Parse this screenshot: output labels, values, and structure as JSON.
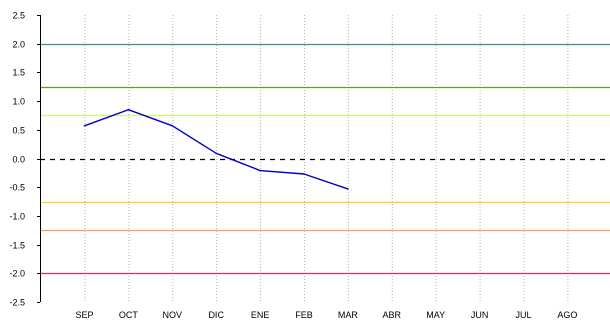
{
  "chart_data": {
    "type": "line",
    "title": "",
    "xlabel": "",
    "ylabel": "",
    "categories": [
      "SEP",
      "OCT",
      "NOV",
      "DIC",
      "ENE",
      "FEB",
      "MAR",
      "ABR",
      "MAY",
      "JUN",
      "JUL",
      "AGO"
    ],
    "ylim": [
      -2.5,
      2.5
    ],
    "yticks": [
      "2.5",
      "2.0",
      "1.5",
      "1.0",
      "0.5",
      "0.0",
      "-0.5",
      "-1.0",
      "-1.5",
      "-2.0",
      "-2.5"
    ],
    "grid": "vertical-dotted",
    "series": [
      {
        "color": "#0000cc",
        "values": [
          0.57,
          0.85,
          0.57,
          0.09,
          -0.21,
          -0.27,
          -0.53,
          null,
          null,
          null,
          null,
          null
        ]
      }
    ],
    "reference_lines": [
      {
        "value": 2.0,
        "color": "#339966",
        "style": "solid"
      },
      {
        "value": 1.25,
        "color": "#669933",
        "style": "solid"
      },
      {
        "value": 0.75,
        "color": "#ccff66",
        "style": "solid"
      },
      {
        "value": 0.0,
        "color": "#000000",
        "style": "dashed"
      },
      {
        "value": -0.75,
        "color": "#ffcc33",
        "style": "solid"
      },
      {
        "value": -1.25,
        "color": "#ff9966",
        "style": "solid"
      },
      {
        "value": -2.0,
        "color": "#cc3366",
        "style": "solid"
      }
    ]
  }
}
